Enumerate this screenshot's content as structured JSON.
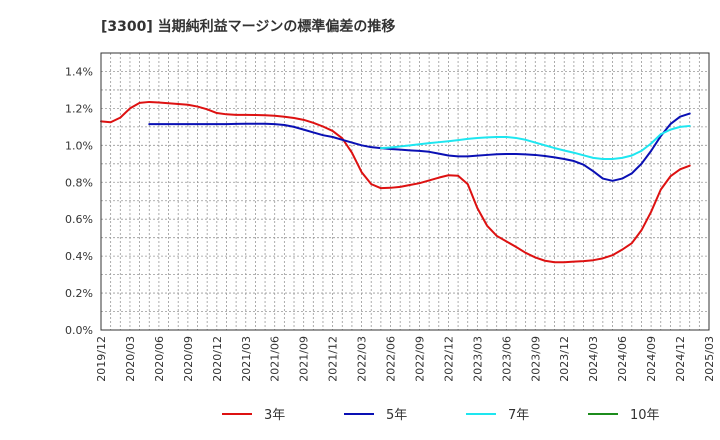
{
  "chart_data": {
    "type": "line",
    "title": "[3300]  当期純利益マージンの標準偏差の推移",
    "xlabel": "",
    "ylabel": "",
    "ylim": [
      0,
      1.5
    ],
    "yticks": [
      0,
      0.2,
      0.4,
      0.6,
      0.8,
      1.0,
      1.2,
      1.4
    ],
    "ytick_labels": [
      "0.0%",
      "0.2%",
      "0.4%",
      "0.6%",
      "0.8%",
      "1.0%",
      "1.2%",
      "1.4%"
    ],
    "xtick_labels": [
      "2019/12",
      "2020/03",
      "2020/06",
      "2020/09",
      "2020/12",
      "2021/03",
      "2021/06",
      "2021/09",
      "2021/12",
      "2022/03",
      "2022/06",
      "2022/09",
      "2022/12",
      "2023/03",
      "2023/06",
      "2023/09",
      "2023/12",
      "2024/03",
      "2024/06",
      "2024/09",
      "2024/12",
      "2025/03"
    ],
    "grid": true,
    "legend_position": "bottom",
    "series": [
      {
        "name": "3年",
        "color": "#dd1111",
        "points": [
          [
            0,
            1.13
          ],
          [
            1,
            1.125
          ],
          [
            2,
            1.15
          ],
          [
            3,
            1.2
          ],
          [
            4,
            1.23
          ],
          [
            5,
            1.235
          ],
          [
            6,
            1.232
          ],
          [
            7,
            1.228
          ],
          [
            8,
            1.224
          ],
          [
            9,
            1.22
          ],
          [
            10,
            1.21
          ],
          [
            11,
            1.195
          ],
          [
            12,
            1.175
          ],
          [
            13,
            1.168
          ],
          [
            14,
            1.165
          ],
          [
            15,
            1.165
          ],
          [
            16,
            1.164
          ],
          [
            17,
            1.163
          ],
          [
            18,
            1.16
          ],
          [
            19,
            1.155
          ],
          [
            20,
            1.148
          ],
          [
            21,
            1.138
          ],
          [
            22,
            1.122
          ],
          [
            23,
            1.102
          ],
          [
            24,
            1.078
          ],
          [
            25,
            1.038
          ],
          [
            26,
            0.96
          ],
          [
            27,
            0.855
          ],
          [
            28,
            0.79
          ],
          [
            29,
            0.768
          ],
          [
            30,
            0.77
          ],
          [
            31,
            0.775
          ],
          [
            32,
            0.785
          ],
          [
            33,
            0.795
          ],
          [
            34,
            0.81
          ],
          [
            35,
            0.825
          ],
          [
            36,
            0.838
          ],
          [
            37,
            0.835
          ],
          [
            38,
            0.79
          ],
          [
            39,
            0.66
          ],
          [
            40,
            0.565
          ],
          [
            41,
            0.51
          ],
          [
            42,
            0.48
          ],
          [
            43,
            0.45
          ],
          [
            44,
            0.418
          ],
          [
            45,
            0.393
          ],
          [
            46,
            0.375
          ],
          [
            47,
            0.367
          ],
          [
            48,
            0.367
          ],
          [
            49,
            0.37
          ],
          [
            50,
            0.373
          ],
          [
            51,
            0.378
          ],
          [
            52,
            0.388
          ],
          [
            53,
            0.405
          ],
          [
            54,
            0.435
          ],
          [
            55,
            0.47
          ],
          [
            56,
            0.54
          ],
          [
            57,
            0.64
          ],
          [
            58,
            0.76
          ],
          [
            59,
            0.832
          ],
          [
            60,
            0.87
          ],
          [
            61,
            0.89
          ]
        ]
      },
      {
        "name": "5年",
        "color": "#0a10b4",
        "points": [
          [
            5,
            1.115
          ],
          [
            6,
            1.115
          ],
          [
            7,
            1.115
          ],
          [
            8,
            1.115
          ],
          [
            9,
            1.115
          ],
          [
            10,
            1.115
          ],
          [
            11,
            1.115
          ],
          [
            12,
            1.115
          ],
          [
            13,
            1.115
          ],
          [
            14,
            1.116
          ],
          [
            15,
            1.117
          ],
          [
            16,
            1.117
          ],
          [
            17,
            1.117
          ],
          [
            18,
            1.115
          ],
          [
            19,
            1.11
          ],
          [
            20,
            1.1
          ],
          [
            21,
            1.085
          ],
          [
            22,
            1.07
          ],
          [
            23,
            1.055
          ],
          [
            24,
            1.045
          ],
          [
            25,
            1.03
          ],
          [
            26,
            1.015
          ],
          [
            27,
            1.0
          ],
          [
            28,
            0.99
          ],
          [
            29,
            0.985
          ],
          [
            30,
            0.98
          ],
          [
            31,
            0.977
          ],
          [
            32,
            0.973
          ],
          [
            33,
            0.97
          ],
          [
            34,
            0.965
          ],
          [
            35,
            0.955
          ],
          [
            36,
            0.945
          ],
          [
            37,
            0.94
          ],
          [
            38,
            0.94
          ],
          [
            39,
            0.944
          ],
          [
            40,
            0.948
          ],
          [
            41,
            0.952
          ],
          [
            42,
            0.953
          ],
          [
            43,
            0.953
          ],
          [
            44,
            0.951
          ],
          [
            45,
            0.948
          ],
          [
            46,
            0.942
          ],
          [
            47,
            0.935
          ],
          [
            48,
            0.926
          ],
          [
            49,
            0.915
          ],
          [
            50,
            0.895
          ],
          [
            51,
            0.86
          ],
          [
            52,
            0.82
          ],
          [
            53,
            0.808
          ],
          [
            54,
            0.82
          ],
          [
            55,
            0.848
          ],
          [
            56,
            0.9
          ],
          [
            57,
            0.97
          ],
          [
            58,
            1.05
          ],
          [
            59,
            1.115
          ],
          [
            60,
            1.155
          ],
          [
            61,
            1.172
          ]
        ]
      },
      {
        "name": "7年",
        "color": "#1ee6f0",
        "points": [
          [
            29,
            0.985
          ],
          [
            30,
            0.988
          ],
          [
            31,
            0.994
          ],
          [
            32,
            1.0
          ],
          [
            33,
            1.006
          ],
          [
            34,
            1.012
          ],
          [
            35,
            1.017
          ],
          [
            36,
            1.022
          ],
          [
            37,
            1.028
          ],
          [
            38,
            1.035
          ],
          [
            39,
            1.04
          ],
          [
            40,
            1.043
          ],
          [
            41,
            1.045
          ],
          [
            42,
            1.045
          ],
          [
            43,
            1.04
          ],
          [
            44,
            1.03
          ],
          [
            45,
            1.015
          ],
          [
            46,
            1.0
          ],
          [
            47,
            0.985
          ],
          [
            48,
            0.972
          ],
          [
            49,
            0.96
          ],
          [
            50,
            0.946
          ],
          [
            51,
            0.932
          ],
          [
            52,
            0.926
          ],
          [
            53,
            0.926
          ],
          [
            54,
            0.932
          ],
          [
            55,
            0.945
          ],
          [
            56,
            0.97
          ],
          [
            57,
            1.01
          ],
          [
            58,
            1.06
          ],
          [
            59,
            1.085
          ],
          [
            60,
            1.1
          ],
          [
            61,
            1.105
          ]
        ]
      },
      {
        "name": "10年",
        "color": "#1c8c1c",
        "points": []
      }
    ]
  }
}
